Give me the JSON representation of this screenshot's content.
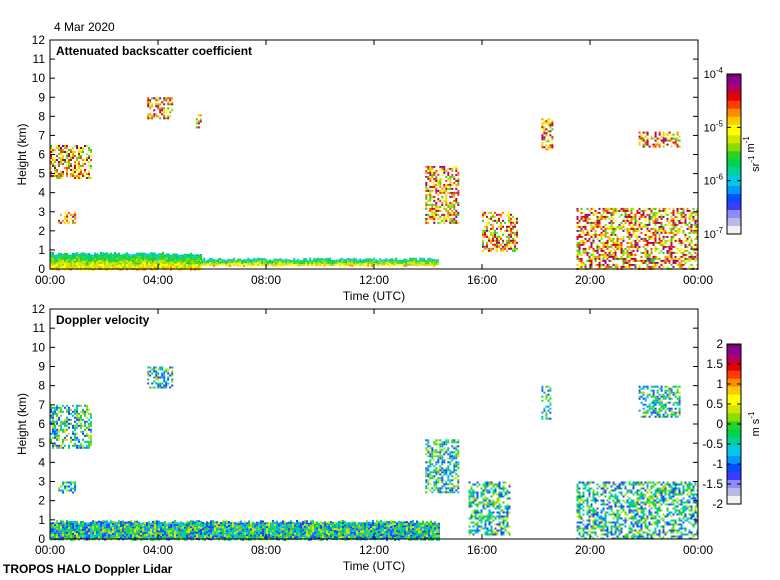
{
  "date_label": "4 Mar 2020",
  "footer_label": "TROPOS HALO Doppler Lidar",
  "colors": {
    "rainbow": [
      "#f2f2f2",
      "#b9b9e6",
      "#8c8cff",
      "#3c3cff",
      "#0050ff",
      "#0096ff",
      "#00c8e6",
      "#00d296",
      "#00d250",
      "#28d228",
      "#8cdc00",
      "#d2e600",
      "#ffff00",
      "#ffc800",
      "#ff8c00",
      "#ff3c00",
      "#e60000",
      "#b4005a",
      "#8c0096",
      "#6e0a5a"
    ]
  },
  "chart_data": [
    {
      "type": "heatmap",
      "title": "Attenuated backscatter coefficient",
      "xlabel": "Time (UTC)",
      "ylabel": "Height (km)",
      "x_ticks": [
        "00:00",
        "04:00",
        "08:00",
        "12:00",
        "16:00",
        "20:00",
        "00:00"
      ],
      "x_range_hours": [
        0,
        24
      ],
      "y_ticks": [
        "0",
        "1",
        "2",
        "3",
        "4",
        "5",
        "6",
        "7",
        "8",
        "9",
        "10",
        "11",
        "12"
      ],
      "ylim": [
        0,
        12
      ],
      "colorbar": {
        "scale": "log",
        "range": [
          1e-07,
          0.0001
        ],
        "tick_labels": [
          {
            "base": "10",
            "exp": "-4"
          },
          {
            "base": "10",
            "exp": "-5"
          },
          {
            "base": "10",
            "exp": "-6"
          },
          {
            "base": "10",
            "exp": "-7"
          }
        ],
        "unit": {
          "a": "sr",
          "a_exp": "-1",
          "b": "m",
          "b_exp": "-1"
        }
      },
      "features": [
        {
          "desc": "boundary layer",
          "t0": 0.0,
          "t1": 5.6,
          "h0": 0.0,
          "h1": 0.9
        },
        {
          "desc": "cloud/aerosol layer",
          "t0": 5.6,
          "t1": 14.4,
          "h0": 0.2,
          "h1": 0.6
        },
        {
          "desc": "cloud",
          "t0": 0.0,
          "t1": 1.5,
          "h0": 4.8,
          "h1": 6.5
        },
        {
          "desc": "cloud",
          "t0": 0.3,
          "t1": 0.9,
          "h0": 2.4,
          "h1": 3.0
        },
        {
          "desc": "cloud",
          "t0": 3.6,
          "t1": 4.5,
          "h0": 7.9,
          "h1": 9.0
        },
        {
          "desc": "cloud",
          "t0": 5.4,
          "t1": 5.6,
          "h0": 7.4,
          "h1": 8.1
        },
        {
          "desc": "cloud",
          "t0": 13.9,
          "t1": 15.1,
          "h0": 2.4,
          "h1": 5.4
        },
        {
          "desc": "cloud",
          "t0": 16.0,
          "t1": 17.3,
          "h0": 1.0,
          "h1": 3.0
        },
        {
          "desc": "cloud",
          "t0": 18.2,
          "t1": 18.6,
          "h0": 6.3,
          "h1": 8.0
        },
        {
          "desc": "cloud",
          "t0": 21.8,
          "t1": 23.3,
          "h0": 6.4,
          "h1": 7.2
        },
        {
          "desc": "cloud",
          "t0": 19.5,
          "t1": 24.0,
          "h0": 0.0,
          "h1": 3.2
        }
      ]
    },
    {
      "type": "heatmap",
      "title": "Doppler velocity",
      "xlabel": "Time (UTC)",
      "ylabel": "Height (km)",
      "x_ticks": [
        "00:00",
        "04:00",
        "08:00",
        "12:00",
        "16:00",
        "20:00",
        "00:00"
      ],
      "x_range_hours": [
        0,
        24
      ],
      "y_ticks": [
        "0",
        "1",
        "2",
        "3",
        "4",
        "5",
        "6",
        "7",
        "8",
        "9",
        "10",
        "11",
        "12"
      ],
      "ylim": [
        0,
        12
      ],
      "colorbar": {
        "scale": "linear",
        "range": [
          -2,
          2
        ],
        "tick_labels": [
          "2",
          "1.5",
          "1",
          "0.5",
          "0",
          "-0.5",
          "-1",
          "-1.5",
          "-2"
        ],
        "unit": {
          "a": "m",
          "a_exp": "",
          "b": "s",
          "b_exp": "-1"
        }
      },
      "features": [
        {
          "desc": "boundary layer",
          "t0": 0.0,
          "t1": 14.4,
          "h0": 0.0,
          "h1": 1.0
        },
        {
          "desc": "cloud",
          "t0": 0.0,
          "t1": 1.5,
          "h0": 4.8,
          "h1": 7.0
        },
        {
          "desc": "cloud",
          "t0": 0.3,
          "t1": 0.9,
          "h0": 2.4,
          "h1": 3.0
        },
        {
          "desc": "cloud",
          "t0": 3.6,
          "t1": 4.5,
          "h0": 7.9,
          "h1": 9.0
        },
        {
          "desc": "cloud",
          "t0": 13.9,
          "t1": 15.1,
          "h0": 2.4,
          "h1": 5.2
        },
        {
          "desc": "cloud",
          "t0": 15.5,
          "t1": 17.0,
          "h0": 0.2,
          "h1": 3.0
        },
        {
          "desc": "cloud",
          "t0": 18.2,
          "t1": 18.5,
          "h0": 6.3,
          "h1": 8.0
        },
        {
          "desc": "cloud",
          "t0": 21.8,
          "t1": 23.3,
          "h0": 6.4,
          "h1": 8.0
        },
        {
          "desc": "cloud",
          "t0": 19.5,
          "t1": 24.0,
          "h0": 0.0,
          "h1": 3.0
        }
      ]
    }
  ]
}
